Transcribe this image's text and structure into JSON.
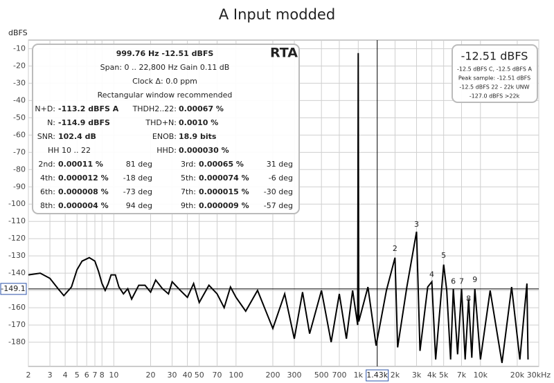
{
  "chart_data": {
    "type": "line",
    "title": "A Input modded",
    "y_label": "dBFS",
    "color": "#000000",
    "log_x": true,
    "grid": true,
    "xlim": [
      2,
      30000
    ],
    "ylim": [
      -194,
      -5
    ],
    "xticks": [
      2,
      3,
      4,
      5,
      6,
      7,
      8,
      10,
      20,
      30,
      40,
      50,
      70,
      100,
      200,
      300,
      500,
      700,
      {
        "value": 1000,
        "label": "1k"
      },
      {
        "value": 2000,
        "label": "2k"
      },
      {
        "value": 3000,
        "label": "3k"
      },
      {
        "value": 4000,
        "label": "4k"
      },
      {
        "value": 5000,
        "label": "5k"
      },
      {
        "value": 7000,
        "label": "7k"
      },
      {
        "value": 10000,
        "label": "10k"
      },
      {
        "value": 20000,
        "label": "20k"
      },
      {
        "value": 30000,
        "label": "30kHz"
      }
    ],
    "yticks": [
      -10,
      -20,
      -30,
      -40,
      -50,
      -60,
      -70,
      -80,
      -90,
      -100,
      -110,
      -120,
      -130,
      -140,
      -150,
      -160,
      -170,
      -180
    ],
    "x": [
      2,
      2.5,
      3,
      3.5,
      3.9,
      4.5,
      5,
      5.5,
      6.3,
      7,
      7.5,
      8,
      8.5,
      9,
      9.5,
      10.3,
      11,
      12,
      13,
      14,
      16,
      18,
      20,
      22,
      25,
      28,
      30,
      35,
      40,
      45,
      50,
      60,
      70,
      80,
      90,
      100,
      120,
      150,
      200,
      250,
      300,
      350,
      400,
      500,
      600,
      700,
      800,
      900,
      990,
      999.76,
      1010,
      1200,
      1400,
      1700,
      1999.5,
      2100,
      2500,
      2999,
      3200,
      3700,
      4000,
      4300,
      4999,
      5300,
      5700,
      6000,
      6500,
      7000,
      7500,
      8000,
      8500,
      9000,
      10000,
      12000,
      15000,
      18000,
      21000,
      24000,
      24500
    ],
    "values": [
      -141,
      -140,
      -143,
      -149,
      -153,
      -148,
      -138,
      -133,
      -131,
      -133,
      -139,
      -146,
      -150,
      -146,
      -141,
      -141,
      -148,
      -152,
      -149,
      -155,
      -147,
      -147,
      -151,
      -144,
      -149,
      -152,
      -145,
      -150,
      -154,
      -146,
      -157,
      -147,
      -152,
      -160,
      -148,
      -154,
      -162,
      -150,
      -172,
      -152,
      -178,
      -151,
      -175,
      -150,
      -180,
      -152,
      -178,
      -150,
      -170,
      -12.51,
      -168,
      -148,
      -182,
      -150,
      -131,
      -183,
      -148,
      -116,
      -185,
      -148,
      -145,
      -190,
      -135,
      -150,
      -190,
      -149,
      -187,
      -149,
      -190,
      -155,
      -189,
      -149,
      -190,
      -150,
      -192,
      -148,
      -190,
      -146,
      -190
    ],
    "harmonics": [
      {
        "label": "2",
        "x": 1999.5,
        "y": -126
      },
      {
        "label": "3",
        "x": 2999,
        "y": -112
      },
      {
        "label": "4",
        "x": 3999,
        "y": -141
      },
      {
        "label": "5",
        "x": 4999,
        "y": -130
      },
      {
        "label": "6",
        "x": 5999,
        "y": -145
      },
      {
        "label": "7",
        "x": 6998,
        "y": -145
      },
      {
        "label": "8",
        "x": 7998,
        "y": -155
      },
      {
        "label": "9",
        "x": 8998,
        "y": -144
      }
    ],
    "cursor_x": {
      "value": 1430,
      "label": "1.43k"
    },
    "cursor_y": -149.1
  },
  "info_box": {
    "label": "RTA",
    "header": [
      "999.76 Hz  -12.51 dBFS",
      "Span: 0 .. 22,800 Hz  Gain 0.11 dB",
      "Clock Δ: 0.0 ppm",
      "Rectangular window recommended"
    ],
    "rows": [
      [
        "N+D:",
        "-113.2 dBFS A",
        "THDH2..22:",
        "0.00067 %"
      ],
      [
        "N:",
        "-114.9 dBFS",
        "THD+N:",
        "0.0010 %"
      ],
      [
        "SNR:",
        "102.4 dB",
        "ENOB:",
        "18.9 bits"
      ],
      [
        "HH 10 .. 22",
        "HHD:",
        "0.000030 %"
      ]
    ],
    "harmonics": [
      [
        "2nd:",
        "0.00011 %",
        "81 deg",
        "3rd:",
        "0.00065 %",
        "31 deg"
      ],
      [
        "4th:",
        "0.000012 %",
        "-18 deg",
        "5th:",
        "0.000074 %",
        "-6 deg"
      ],
      [
        "6th:",
        "0.000008 %",
        "-73 deg",
        "7th:",
        "0.000015 %",
        "-30 deg"
      ],
      [
        "8th:",
        "0.000004 %",
        "94 deg",
        "9th:",
        "0.000009 %",
        "-57 deg"
      ]
    ]
  },
  "level_box": {
    "level": "-12.51 dBFS",
    "lines": [
      "-12.5 dBFS C, -12.5 dBFS A",
      "Peak sample: -12.51 dBFS",
      "-12.5 dBFS 22 - 22k UNW",
      "-127.0 dBFS >22k"
    ]
  }
}
